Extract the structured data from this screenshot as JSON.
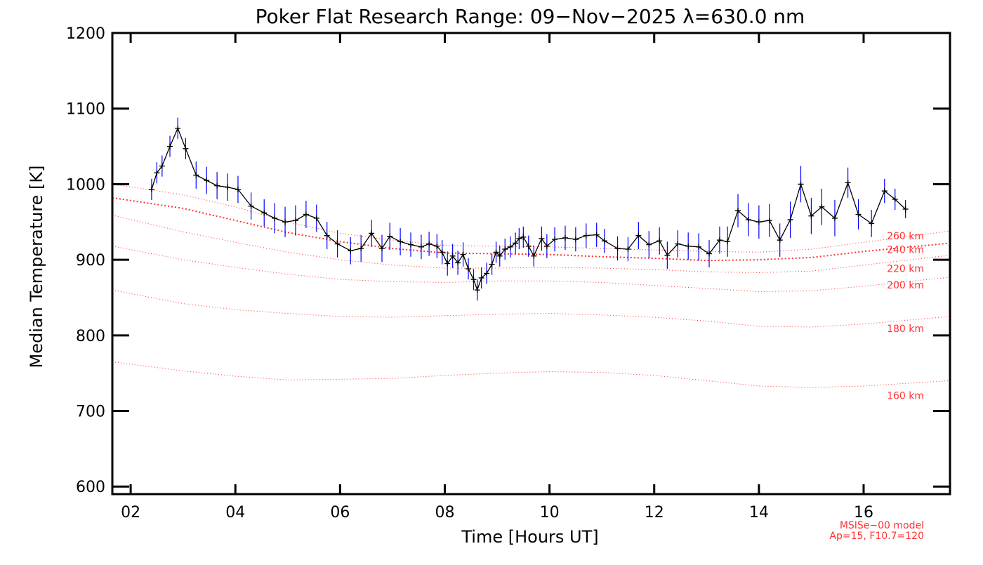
{
  "chart_data": {
    "type": "line",
    "title": "Poker Flat Research Range: 09−Nov−2025 λ=630.0 nm",
    "xlabel": "Time [Hours UT]",
    "ylabel": "Median Temperature [K]",
    "xlim": [
      1.65,
      17.65
    ],
    "ylim": [
      590,
      1200
    ],
    "x_ticks": [
      {
        "value": 2,
        "label": "02"
      },
      {
        "value": 4,
        "label": "04"
      },
      {
        "value": 6,
        "label": "06"
      },
      {
        "value": 8,
        "label": "08"
      },
      {
        "value": 10,
        "label": "10"
      },
      {
        "value": 12,
        "label": "12"
      },
      {
        "value": 14,
        "label": "14"
      },
      {
        "value": 16,
        "label": "16"
      }
    ],
    "y_ticks": [
      {
        "value": 600,
        "label": "600"
      },
      {
        "value": 700,
        "label": "700"
      },
      {
        "value": 800,
        "label": "800"
      },
      {
        "value": 900,
        "label": "900"
      },
      {
        "value": 1000,
        "label": "1000"
      },
      {
        "value": 1100,
        "label": "1100"
      },
      {
        "value": 1200,
        "label": "1200"
      }
    ],
    "grid": false,
    "series": [
      {
        "color": "#000000",
        "error_color": "#0000ff",
        "points": [
          {
            "x": 2.4,
            "y": 993,
            "err": 14
          },
          {
            "x": 2.5,
            "y": 1015,
            "err": 14
          },
          {
            "x": 2.6,
            "y": 1024,
            "err": 14
          },
          {
            "x": 2.75,
            "y": 1050,
            "err": 14
          },
          {
            "x": 2.9,
            "y": 1074,
            "err": 14
          },
          {
            "x": 3.05,
            "y": 1047,
            "err": 14
          },
          {
            "x": 3.25,
            "y": 1012,
            "err": 18
          },
          {
            "x": 3.45,
            "y": 1005,
            "err": 18
          },
          {
            "x": 3.65,
            "y": 998,
            "err": 18
          },
          {
            "x": 3.85,
            "y": 996,
            "err": 18
          },
          {
            "x": 4.05,
            "y": 993,
            "err": 18
          },
          {
            "x": 4.3,
            "y": 971,
            "err": 18
          },
          {
            "x": 4.55,
            "y": 962,
            "err": 18
          },
          {
            "x": 4.75,
            "y": 955,
            "err": 20
          },
          {
            "x": 4.95,
            "y": 950,
            "err": 20
          },
          {
            "x": 5.15,
            "y": 952,
            "err": 20
          },
          {
            "x": 5.35,
            "y": 960,
            "err": 18
          },
          {
            "x": 5.55,
            "y": 955,
            "err": 18
          },
          {
            "x": 5.75,
            "y": 932,
            "err": 18
          },
          {
            "x": 5.95,
            "y": 921,
            "err": 18
          },
          {
            "x": 6.2,
            "y": 912,
            "err": 18
          },
          {
            "x": 6.4,
            "y": 915,
            "err": 18
          },
          {
            "x": 6.6,
            "y": 935,
            "err": 18
          },
          {
            "x": 6.8,
            "y": 915,
            "err": 18
          },
          {
            "x": 6.95,
            "y": 931,
            "err": 18
          },
          {
            "x": 7.15,
            "y": 924,
            "err": 18
          },
          {
            "x": 7.35,
            "y": 920,
            "err": 16
          },
          {
            "x": 7.55,
            "y": 917,
            "err": 16
          },
          {
            "x": 7.7,
            "y": 921,
            "err": 16
          },
          {
            "x": 7.85,
            "y": 918,
            "err": 16
          },
          {
            "x": 7.95,
            "y": 910,
            "err": 16
          },
          {
            "x": 8.05,
            "y": 895,
            "err": 16
          },
          {
            "x": 8.15,
            "y": 905,
            "err": 16
          },
          {
            "x": 8.25,
            "y": 896,
            "err": 16
          },
          {
            "x": 8.35,
            "y": 907,
            "err": 16
          },
          {
            "x": 8.45,
            "y": 888,
            "err": 14
          },
          {
            "x": 8.55,
            "y": 874,
            "err": 14
          },
          {
            "x": 8.62,
            "y": 860,
            "err": 14
          },
          {
            "x": 8.7,
            "y": 876,
            "err": 14
          },
          {
            "x": 8.8,
            "y": 882,
            "err": 14
          },
          {
            "x": 8.9,
            "y": 894,
            "err": 14
          },
          {
            "x": 8.98,
            "y": 910,
            "err": 14
          },
          {
            "x": 9.05,
            "y": 905,
            "err": 14
          },
          {
            "x": 9.15,
            "y": 914,
            "err": 14
          },
          {
            "x": 9.25,
            "y": 917,
            "err": 14
          },
          {
            "x": 9.35,
            "y": 922,
            "err": 14
          },
          {
            "x": 9.42,
            "y": 928,
            "err": 14
          },
          {
            "x": 9.5,
            "y": 930,
            "err": 14
          },
          {
            "x": 9.6,
            "y": 918,
            "err": 14
          },
          {
            "x": 9.7,
            "y": 905,
            "err": 14
          },
          {
            "x": 9.85,
            "y": 928,
            "err": 16
          },
          {
            "x": 9.95,
            "y": 918,
            "err": 16
          },
          {
            "x": 10.1,
            "y": 927,
            "err": 16
          },
          {
            "x": 10.3,
            "y": 929,
            "err": 16
          },
          {
            "x": 10.5,
            "y": 927,
            "err": 16
          },
          {
            "x": 10.7,
            "y": 932,
            "err": 16
          },
          {
            "x": 10.9,
            "y": 933,
            "err": 16
          },
          {
            "x": 11.05,
            "y": 925,
            "err": 16
          },
          {
            "x": 11.3,
            "y": 915,
            "err": 16
          },
          {
            "x": 11.5,
            "y": 914,
            "err": 16
          },
          {
            "x": 11.7,
            "y": 932,
            "err": 18
          },
          {
            "x": 11.9,
            "y": 920,
            "err": 18
          },
          {
            "x": 12.1,
            "y": 925,
            "err": 18
          },
          {
            "x": 12.25,
            "y": 906,
            "err": 18
          },
          {
            "x": 12.45,
            "y": 921,
            "err": 18
          },
          {
            "x": 12.65,
            "y": 918,
            "err": 18
          },
          {
            "x": 12.85,
            "y": 917,
            "err": 18
          },
          {
            "x": 13.05,
            "y": 908,
            "err": 18
          },
          {
            "x": 13.25,
            "y": 926,
            "err": 18
          },
          {
            "x": 13.4,
            "y": 924,
            "err": 20
          },
          {
            "x": 13.6,
            "y": 965,
            "err": 22
          },
          {
            "x": 13.8,
            "y": 953,
            "err": 22
          },
          {
            "x": 14.0,
            "y": 950,
            "err": 22
          },
          {
            "x": 14.2,
            "y": 952,
            "err": 22
          },
          {
            "x": 14.4,
            "y": 926,
            "err": 22
          },
          {
            "x": 14.6,
            "y": 953,
            "err": 24
          },
          {
            "x": 14.8,
            "y": 1000,
            "err": 24
          },
          {
            "x": 15.0,
            "y": 958,
            "err": 24
          },
          {
            "x": 15.2,
            "y": 970,
            "err": 24
          },
          {
            "x": 15.45,
            "y": 955,
            "err": 24
          },
          {
            "x": 15.7,
            "y": 1002,
            "err": 20
          },
          {
            "x": 15.9,
            "y": 960,
            "err": 20
          },
          {
            "x": 16.15,
            "y": 948,
            "err": 18
          },
          {
            "x": 16.4,
            "y": 991,
            "err": 16
          },
          {
            "x": 16.6,
            "y": 980,
            "err": 14
          },
          {
            "x": 16.8,
            "y": 967,
            "err": 12
          }
        ]
      }
    ],
    "model_curves": [
      {
        "label": "160 km",
        "color": "#ff3030",
        "x": [
          1.65,
          3,
          4,
          5,
          6,
          7,
          8,
          9,
          10,
          11,
          12,
          13,
          14,
          15,
          16,
          17.65
        ],
        "y": [
          765,
          753,
          746,
          741,
          742,
          743,
          747,
          750,
          752,
          751,
          747,
          740,
          733,
          731,
          733,
          740
        ]
      },
      {
        "label": "180 km",
        "color": "#ff3030",
        "x": [
          1.65,
          3,
          4,
          5,
          6,
          7,
          8,
          9,
          10,
          11,
          12,
          13,
          14,
          15,
          16,
          17.65
        ],
        "y": [
          860,
          842,
          834,
          829,
          825,
          824,
          826,
          828,
          829,
          827,
          824,
          819,
          812,
          811,
          815,
          825
        ]
      },
      {
        "label": "200 km",
        "color": "#ff3030",
        "x": [
          1.65,
          3,
          4,
          5,
          6,
          7,
          8,
          9,
          10,
          11,
          12,
          13,
          14,
          15,
          16,
          17.65
        ],
        "y": [
          918,
          900,
          890,
          881,
          874,
          871,
          870,
          872,
          872,
          870,
          866,
          862,
          858,
          859,
          865,
          877
        ]
      },
      {
        "label": "220 km",
        "color": "#ff3030",
        "x": [
          1.65,
          3,
          4,
          5,
          6,
          7,
          8,
          9,
          10,
          11,
          12,
          13,
          14,
          15,
          16,
          17.65
        ],
        "y": [
          959,
          937,
          923,
          910,
          900,
          893,
          889,
          889,
          890,
          889,
          887,
          884,
          883,
          885,
          893,
          906
        ]
      },
      {
        "label": "240 km",
        "color": "#ff3030",
        "x": [
          1.65,
          3,
          4,
          5,
          6,
          7,
          8,
          9,
          10,
          11,
          12,
          13,
          14,
          15,
          16,
          17.65
        ],
        "y": [
          982,
          968,
          952,
          936,
          924,
          915,
          909,
          908,
          907,
          904,
          902,
          899,
          900,
          903,
          911,
          922
        ]
      },
      {
        "label": "260 km",
        "color": "#ff3030",
        "x": [
          1.65,
          3,
          4,
          5,
          6,
          7,
          8,
          9,
          10,
          11,
          12,
          13,
          14,
          15,
          16,
          17.65
        ],
        "y": [
          1000,
          986,
          970,
          950,
          935,
          926,
          919,
          918,
          917,
          915,
          913,
          911,
          910,
          914,
          923,
          938
        ]
      }
    ],
    "model_note": [
      "MSISe−00 model",
      "Ap=15, F10.7=120"
    ]
  }
}
